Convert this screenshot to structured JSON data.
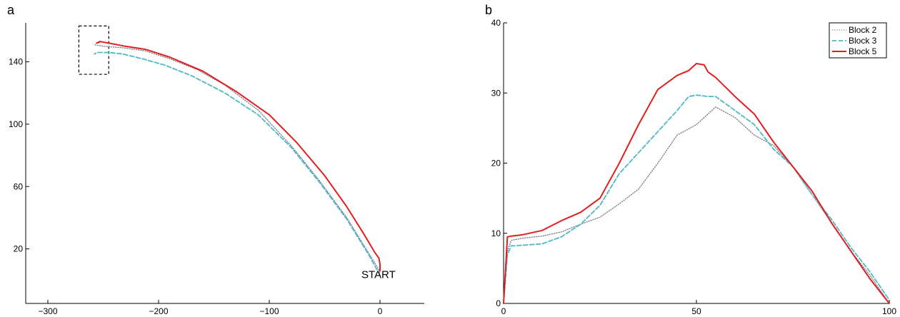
{
  "chart_data": [
    {
      "type": "line",
      "panel_label": "a",
      "title": "",
      "xlabel": "",
      "ylabel": "",
      "xlim": [
        -320,
        40
      ],
      "ylim": [
        -15,
        165
      ],
      "xticks": [
        -300,
        -200,
        -100,
        0
      ],
      "xtick_labels": [
        "−300",
        "−200",
        "−100",
        "0"
      ],
      "yticks": [
        20,
        60,
        100,
        140
      ],
      "ytick_labels": [
        "20",
        "60",
        "100",
        "140"
      ],
      "grid": false,
      "annotations": [
        {
          "text": "START",
          "x": 0,
          "y": 3
        }
      ],
      "highlight_box": {
        "x": [
          -272,
          -245
        ],
        "y": [
          132,
          163
        ]
      },
      "series": [
        {
          "name": "Block 2",
          "color": "#7a7a8a",
          "dash": "dotted",
          "x": [
            0,
            -3,
            -10,
            -30,
            -55,
            -80,
            -110,
            -140,
            -165,
            -190,
            -212,
            -232,
            -250,
            -258
          ],
          "y": [
            5,
            9,
            17,
            40,
            64,
            86,
            109,
            125,
            135,
            142,
            147,
            149,
            150,
            151
          ]
        },
        {
          "name": "Block 3",
          "color": "#4fb8c8",
          "dash": "dashed",
          "x": [
            0,
            -3,
            -10,
            -30,
            -55,
            -80,
            -110,
            -140,
            -170,
            -195,
            -215,
            -232,
            -245,
            -255,
            -258
          ],
          "y": [
            3,
            7,
            16,
            39,
            63,
            85,
            106,
            120,
            131,
            138,
            142,
            145,
            146,
            146,
            145
          ]
        },
        {
          "name": "Block 5",
          "color": "#e02020",
          "dash": "solid",
          "x": [
            0,
            0,
            -1,
            -5,
            -15,
            -30,
            -50,
            -75,
            -100,
            -130,
            -160,
            -190,
            -212,
            -230,
            -245,
            -253,
            -256,
            -252
          ],
          "y": [
            6,
            10,
            14,
            18,
            30,
            47,
            67,
            88,
            106,
            121,
            134,
            143,
            148,
            150,
            152,
            153,
            152,
            153
          ]
        }
      ]
    },
    {
      "type": "line",
      "panel_label": "b",
      "title": "",
      "xlabel": "",
      "ylabel": "",
      "xlim": [
        0,
        100
      ],
      "ylim": [
        0,
        40
      ],
      "xticks": [
        0,
        50,
        100
      ],
      "xtick_labels": [
        "0",
        "50",
        "100"
      ],
      "yticks": [
        0,
        10,
        20,
        30,
        40
      ],
      "ytick_labels": [
        "0",
        "10",
        "20",
        "30",
        "40"
      ],
      "grid": false,
      "legend": {
        "placement": "top-right",
        "entries": [
          "Block 2",
          "Block 3",
          "Block 5"
        ]
      },
      "series": [
        {
          "name": "Block 2",
          "color": "#7a7a8a",
          "dash": "dotted",
          "x": [
            0,
            1,
            2,
            5,
            10,
            15,
            20,
            25,
            30,
            35,
            40,
            45,
            50,
            55,
            60,
            65,
            70,
            75,
            80,
            85,
            90,
            95,
            100
          ],
          "y": [
            0,
            7.5,
            9,
            9.3,
            9.6,
            10.2,
            11.3,
            12.3,
            14.2,
            16.3,
            20,
            24,
            25.5,
            28,
            26.5,
            24,
            22.5,
            19.5,
            15.5,
            11.5,
            7.5,
            4,
            0
          ]
        },
        {
          "name": "Block 3",
          "color": "#4fb8c8",
          "dash": "dashed",
          "x": [
            0,
            1,
            2,
            5,
            10,
            15,
            20,
            25,
            30,
            35,
            40,
            45,
            48,
            50,
            53,
            55,
            60,
            65,
            70,
            75,
            80,
            85,
            90,
            95,
            100
          ],
          "y": [
            0,
            7,
            8.2,
            8.3,
            8.5,
            9.5,
            11.3,
            14,
            18.5,
            21.5,
            24.5,
            27.5,
            29.5,
            29.7,
            29.5,
            29.5,
            27.5,
            25.5,
            22,
            19.5,
            15.5,
            12,
            8,
            4.5,
            0.5
          ]
        },
        {
          "name": "Block 5",
          "color": "#e02020",
          "dash": "solid",
          "x": [
            0,
            1,
            2,
            5,
            10,
            15,
            20,
            25,
            30,
            35,
            40,
            45,
            48,
            50,
            52,
            53,
            55,
            60,
            65,
            70,
            75,
            80,
            85,
            90,
            95,
            100
          ],
          "y": [
            0,
            9.5,
            9.6,
            9.8,
            10.4,
            11.8,
            13,
            15,
            20,
            25.5,
            30.5,
            32.5,
            33.2,
            34.2,
            34,
            33,
            32.2,
            29.5,
            27,
            23,
            19.5,
            16,
            11.5,
            7.5,
            3.5,
            0
          ]
        }
      ]
    }
  ]
}
